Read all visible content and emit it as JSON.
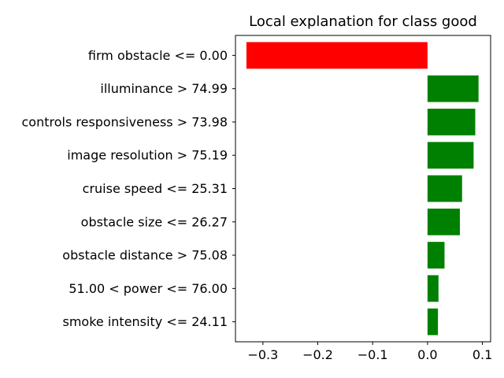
{
  "chart_data": {
    "type": "bar",
    "orientation": "horizontal",
    "title": "Local explanation for class good",
    "xlabel": "",
    "ylabel": "",
    "categories": [
      "firm obstacle <= 0.00",
      "illuminance > 74.99",
      "controls responsiveness > 73.98",
      "image resolution > 75.19",
      "cruise speed <= 25.31",
      "obstacle size <= 26.27",
      "obstacle distance > 75.08",
      "51.00 < power <= 76.00",
      "smoke intensity <= 24.11"
    ],
    "values": [
      -0.33,
      0.093,
      0.087,
      0.084,
      0.063,
      0.059,
      0.031,
      0.02,
      0.019
    ],
    "xlim": [
      -0.35,
      0.115
    ],
    "xticks": [
      -0.3,
      -0.2,
      -0.1,
      0.0,
      0.1
    ],
    "xtick_labels": [
      "−0.3",
      "−0.2",
      "−0.1",
      "0.0",
      "0.1"
    ],
    "grid": false,
    "colors": {
      "positive": "#008000",
      "negative": "#ff0000"
    }
  }
}
